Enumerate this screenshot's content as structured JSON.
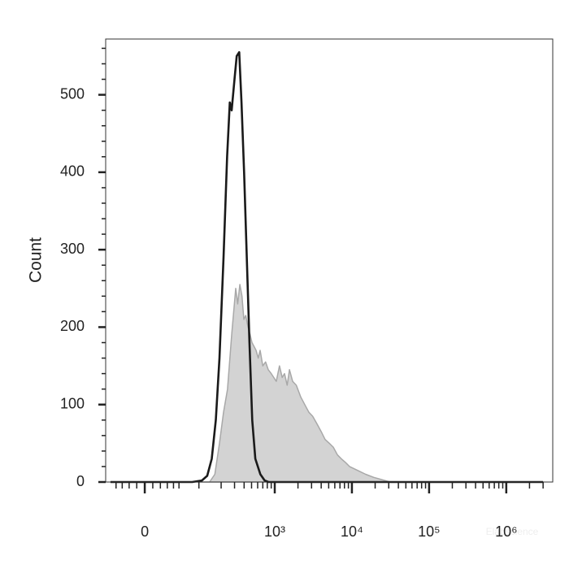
{
  "chart_data": {
    "type": "histogram-overlay",
    "ylabel": "Count",
    "watermark": "Elabscience",
    "xscale": "asinh",
    "xscale_cofactor": 41.4,
    "xlim": [
      -60,
      4000000
    ],
    "ylim": [
      0,
      572
    ],
    "xticks": [
      0,
      {
        "value": 1000,
        "label": "10³"
      },
      {
        "value": 10000,
        "label": "10⁴"
      },
      {
        "value": 100000,
        "label": "10⁵"
      },
      {
        "value": 1000000,
        "label": "10⁶"
      }
    ],
    "xminorticks": [
      -40,
      -30,
      -20,
      -10,
      10,
      20,
      30,
      40,
      50,
      100,
      200,
      300,
      400,
      500,
      600,
      700,
      800,
      900,
      2000,
      3000,
      4000,
      5000,
      6000,
      7000,
      8000,
      9000,
      20000,
      30000,
      40000,
      50000,
      60000,
      70000,
      80000,
      90000,
      200000,
      300000,
      400000,
      500000,
      600000,
      700000,
      800000,
      900000,
      2000000,
      3000000
    ],
    "yticks": [
      0,
      100,
      200,
      300,
      400,
      500
    ],
    "yminorticks": [
      20,
      40,
      60,
      80,
      120,
      140,
      160,
      180,
      220,
      240,
      260,
      280,
      320,
      340,
      360,
      380,
      420,
      440,
      460,
      480,
      520,
      540,
      560
    ],
    "series": [
      {
        "color": "#d3d3d3",
        "edge_color": "#a8a8a8",
        "fill": true,
        "x": [
          -50,
          140,
          165,
          190,
          215,
          243,
          275,
          311,
          330,
          352,
          375,
          397,
          420,
          449,
          480,
          507,
          540,
          572,
          610,
          646,
          700,
          760,
          823,
          900,
          1048,
          1150,
          1250,
          1337,
          1450,
          1550,
          1706,
          1900,
          2170,
          2450,
          2770,
          3100,
          3527,
          4000,
          4492,
          5100,
          5730,
          6500,
          7290,
          8300,
          9310,
          11850,
          15100,
          19250,
          24500,
          31250,
          3000000
        ],
        "values": [
          0,
          0,
          10,
          50,
          90,
          120,
          190,
          250,
          230,
          255,
          240,
          210,
          215,
          200,
          190,
          180,
          175,
          170,
          160,
          170,
          150,
          155,
          145,
          140,
          130,
          150,
          135,
          140,
          125,
          145,
          130,
          125,
          110,
          100,
          90,
          85,
          75,
          65,
          55,
          50,
          45,
          35,
          30,
          25,
          20,
          15,
          10,
          6,
          3,
          0,
          0
        ]
      },
      {
        "color": "#1a1a1a",
        "fill": false,
        "x": [
          -50,
          80,
          110,
          130,
          150,
          170,
          190,
          215,
          240,
          260,
          275,
          300,
          320,
          345,
          370,
          400,
          430,
          470,
          510,
          560,
          650,
          740,
          830,
          950,
          3000000
        ],
        "values": [
          0,
          0,
          2,
          8,
          30,
          80,
          160,
          290,
          420,
          490,
          480,
          520,
          550,
          555,
          490,
          400,
          300,
          180,
          80,
          30,
          10,
          2,
          0,
          0,
          0
        ]
      }
    ]
  }
}
